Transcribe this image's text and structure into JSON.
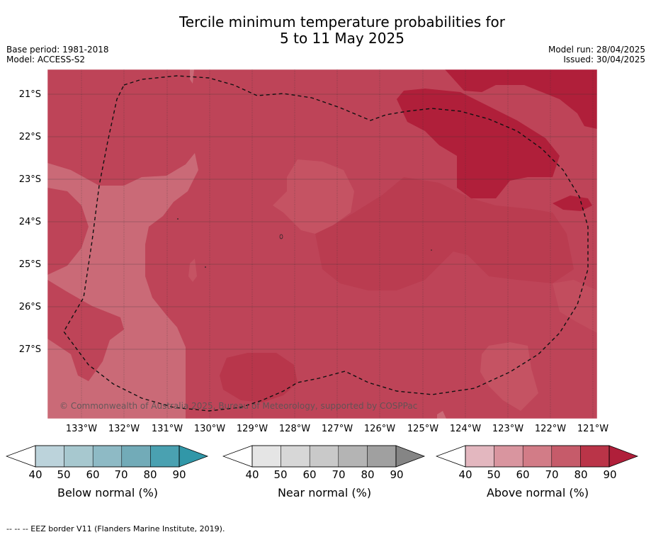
{
  "title": {
    "line1": "Tercile minimum temperature probabilities for",
    "line2": "5 to 11 May 2025"
  },
  "info_left": {
    "base_period": "Base period: 1981-2018",
    "model": "Model: ACCESS-S2"
  },
  "info_right": {
    "model_run": "Model run: 28/04/2025",
    "issued": "Issued: 30/04/2025"
  },
  "map": {
    "lat_labels": [
      "21°S",
      "22°S",
      "23°S",
      "24°S",
      "25°S",
      "26°S",
      "27°S"
    ],
    "lon_labels": [
      "133°W",
      "132°W",
      "131°W",
      "130°W",
      "129°W",
      "128°W",
      "127°W",
      "126°W",
      "125°W",
      "124°W",
      "123°W",
      "122°W",
      "121°W"
    ],
    "copyright": "© Commonwealth of Australia 2025, Bureau of Meteorology, supported by COSPPac"
  },
  "colorbars": [
    {
      "label": "Below normal (%)",
      "ticks": [
        "40",
        "50",
        "60",
        "70",
        "80",
        "90"
      ],
      "colors": [
        "#bcd3db",
        "#a7c8cf",
        "#8ebac5",
        "#72abb8",
        "#4aa1b1",
        "#3197a8"
      ]
    },
    {
      "label": "Near normal (%)",
      "ticks": [
        "40",
        "50",
        "60",
        "70",
        "80",
        "90"
      ],
      "colors": [
        "#e5e5e5",
        "#d7d7d7",
        "#c9c9c9",
        "#b4b4b4",
        "#a0a0a0",
        "#858585"
      ]
    },
    {
      "label": "Above normal (%)",
      "ticks": [
        "40",
        "50",
        "60",
        "70",
        "80",
        "90"
      ],
      "colors": [
        "#e3b7bf",
        "#d9959f",
        "#d27c87",
        "#c65b6a",
        "#ba3448",
        "#b01f3a"
      ]
    }
  ],
  "footer": "--  --  -- EEZ border V11 (Flanders Marine Institute, 2019)."
}
